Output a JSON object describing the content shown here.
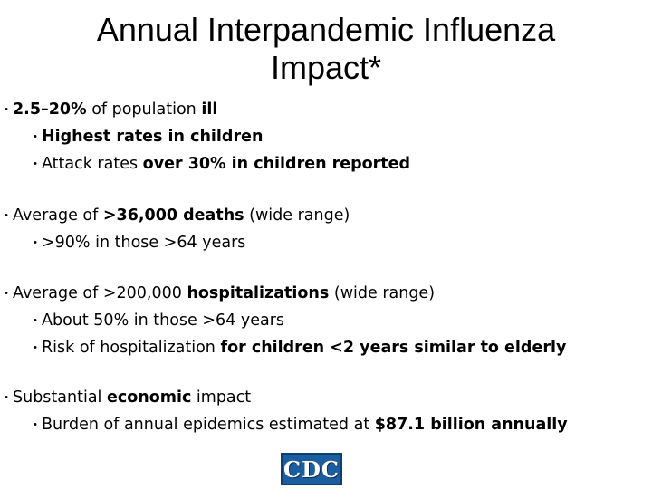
{
  "title": {
    "line1": "Annual Interpandemic Influenza",
    "line2": "Impact*"
  },
  "bullet_marker": "・",
  "bullets": [
    {
      "segments": [
        {
          "t": "2.5–20%",
          "b": true
        },
        {
          "t": " of population ",
          "b": false
        },
        {
          "t": "ill",
          "b": true
        }
      ]
    },
    {
      "segments": [
        {
          "t": "Highest rates in children",
          "b": true
        }
      ]
    },
    {
      "segments": [
        {
          "t": "Attack rates ",
          "b": false
        },
        {
          "t": "over 30% in children reported",
          "b": true
        }
      ]
    },
    {
      "segments": [
        {
          "t": "Average of ",
          "b": false
        },
        {
          "t": ">36,000 deaths",
          "b": true
        },
        {
          "t": " (wide range)",
          "b": false
        }
      ]
    },
    {
      "segments": [
        {
          "t": ">90% in those >64 years",
          "b": false
        }
      ]
    },
    {
      "segments": [
        {
          "t": "Average of >200,000 ",
          "b": false
        },
        {
          "t": "hospitalizations",
          "b": true
        },
        {
          "t": " (wide range)",
          "b": false
        }
      ]
    },
    {
      "segments": [
        {
          "t": "About 50% in those >64 years",
          "b": false
        }
      ]
    },
    {
      "segments": [
        {
          "t": "Risk of hospitalization ",
          "b": false
        },
        {
          "t": "for children <2 years similar to elderly",
          "b": true
        }
      ]
    },
    {
      "segments": [
        {
          "t": "Substantial ",
          "b": false
        },
        {
          "t": "economic",
          "b": true
        },
        {
          "t": " impact",
          "b": false
        }
      ]
    },
    {
      "segments": [
        {
          "t": "Burden of annual epidemics estimated at ",
          "b": false
        },
        {
          "t": "$87.1 billion annually",
          "b": true
        }
      ]
    }
  ],
  "logo": {
    "text": "CDC",
    "colors": {
      "background": "#1b5d9e",
      "text": "#ffffff"
    }
  }
}
